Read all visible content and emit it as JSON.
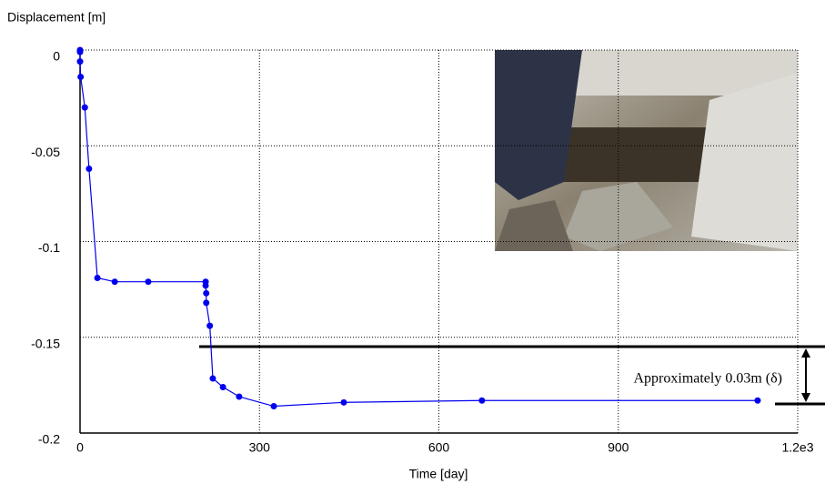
{
  "chart_data": {
    "type": "line",
    "y_label": "Displacement [m]",
    "x_label": "Time [day]",
    "annotation": "Approximately 0.03m (δ)",
    "xlim": [
      0,
      1200
    ],
    "xticks": [
      0,
      300,
      600,
      900,
      {
        "value": 1200,
        "label": "1.2e3"
      }
    ],
    "ylim": [
      -0.2,
      0
    ],
    "yticks": [
      0,
      -0.05,
      -0.1,
      -0.15,
      -0.2
    ],
    "grid": true,
    "series": [
      {
        "color": "#0000ee",
        "x": [
          0,
          0,
          0,
          1,
          8,
          15,
          29,
          58,
          114,
          210,
          210,
          211,
          211,
          217,
          222,
          239,
          266,
          324,
          441,
          672,
          1133
        ],
        "values": [
          0,
          -0.001,
          -0.006,
          -0.014,
          -0.03,
          -0.062,
          -0.119,
          -0.121,
          -0.121,
          -0.121,
          -0.123,
          -0.127,
          -0.132,
          -0.144,
          -0.1715,
          -0.176,
          -0.181,
          -0.186,
          -0.184,
          -0.183,
          -0.183
        ]
      }
    ]
  }
}
